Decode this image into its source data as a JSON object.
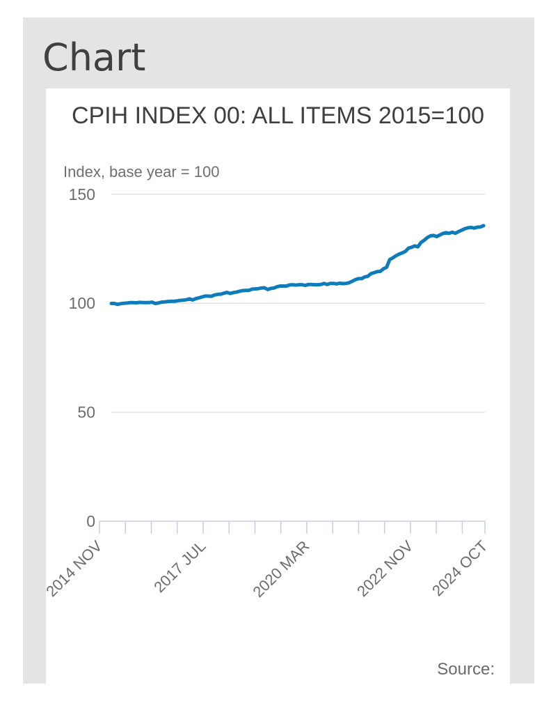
{
  "page": {
    "heading": "Chart"
  },
  "card": {
    "source_label": "Source:"
  },
  "colors": {
    "panel_bg": "#e4e4e4",
    "card_bg": "#ffffff",
    "line": "#0e7cba",
    "grid": "#e2e2e2",
    "axis": "#c2d0e1",
    "tick_text": "#6b6c6e"
  },
  "chart_data": {
    "type": "line",
    "title": "CPIH INDEX 00: ALL ITEMS 2015=100",
    "subtitle": "Index, base year = 100",
    "ylabel": "Index, base year = 100",
    "period_start": "2014 NOV",
    "period_end": "2024 OCT",
    "frequency": "monthly",
    "grid": "horizontal-only",
    "legend": "off",
    "ylim": [
      0,
      160
    ],
    "y_ticks": [
      0,
      50,
      100,
      150
    ],
    "minor_tick_step_months": 8,
    "x_tick_labels": [
      {
        "month_index": 0,
        "label": "2014 NOV"
      },
      {
        "month_index": 32,
        "label": "2017 JUL"
      },
      {
        "month_index": 64,
        "label": "2020 MAR"
      },
      {
        "month_index": 96,
        "label": "2022 NOV"
      },
      {
        "month_index": 119,
        "label": "2024 OCT"
      }
    ],
    "series": [
      {
        "name": "CPIH Index 00: All items",
        "color": "#0e7cba",
        "values": [
          99.9,
          99.9,
          99.5,
          99.8,
          100.0,
          100.1,
          100.3,
          100.3,
          100.2,
          100.4,
          100.3,
          100.3,
          100.3,
          100.5,
          99.9,
          100.1,
          100.5,
          100.6,
          100.8,
          100.9,
          100.9,
          101.1,
          101.3,
          101.4,
          101.6,
          102.0,
          101.5,
          102.1,
          102.5,
          102.9,
          103.3,
          103.3,
          103.2,
          103.8,
          104.1,
          104.2,
          104.6,
          105.0,
          104.5,
          104.9,
          105.1,
          105.5,
          105.8,
          105.9,
          105.9,
          106.5,
          106.6,
          106.7,
          107.0,
          107.1,
          106.3,
          106.8,
          107.0,
          107.6,
          107.9,
          107.9,
          107.9,
          108.4,
          108.5,
          108.3,
          108.5,
          108.5,
          108.2,
          108.6,
          108.6,
          108.5,
          108.5,
          108.6,
          109.1,
          108.6,
          109.1,
          109.1,
          108.9,
          109.2,
          109.0,
          109.1,
          109.4,
          110.1,
          110.8,
          111.3,
          111.3,
          112.1,
          112.4,
          113.6,
          114.0,
          114.5,
          114.6,
          115.8,
          116.5,
          120.0,
          120.8,
          121.8,
          122.5,
          123.1,
          123.8,
          125.3,
          125.7,
          126.3,
          125.9,
          127.9,
          128.9,
          130.1,
          130.9,
          131.1,
          130.6,
          131.3,
          132.0,
          132.4,
          132.1,
          132.6,
          132.1,
          132.9,
          133.5,
          134.2,
          134.6,
          134.8,
          134.5,
          134.9,
          135.0,
          135.6
        ]
      }
    ]
  }
}
